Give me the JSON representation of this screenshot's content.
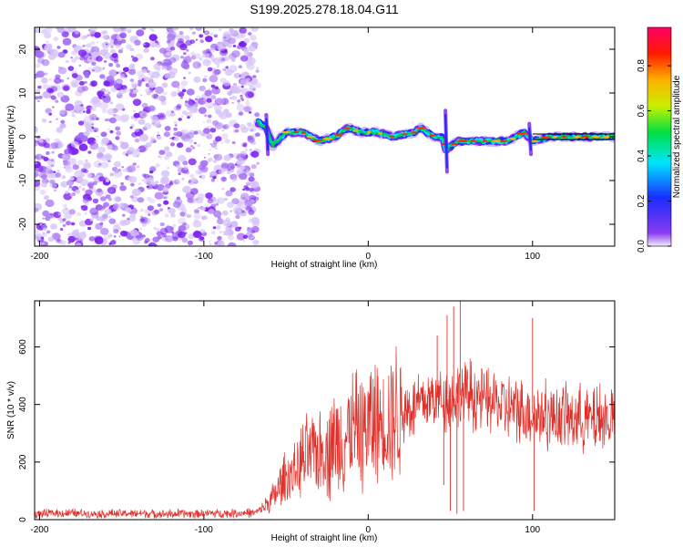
{
  "title": "S199.2025.278.18.04.G11",
  "chart_data": [
    {
      "type": "heatmap",
      "name": "spectrogram",
      "xlabel": "Height of straight line (km)",
      "ylabel": "Frequency (Hz)",
      "xlim": [
        -203,
        150
      ],
      "ylim": [
        -25,
        25
      ],
      "xticks": [
        -200,
        -100,
        0,
        100
      ],
      "yticks": [
        -20,
        -10,
        0,
        10,
        20
      ],
      "noise_region": [
        -203,
        -67
      ],
      "signal_region": [
        -67,
        150
      ],
      "signal_track": [
        {
          "x": -70,
          "f": 4
        },
        {
          "x": -62,
          "f": 2
        },
        {
          "x": -58,
          "f": -2
        },
        {
          "x": -50,
          "f": 1
        },
        {
          "x": -40,
          "f": 1
        },
        {
          "x": -30,
          "f": -1
        },
        {
          "x": -20,
          "f": 0
        },
        {
          "x": -12,
          "f": 2
        },
        {
          "x": -5,
          "f": 1
        },
        {
          "x": 5,
          "f": 1
        },
        {
          "x": 15,
          "f": 0
        },
        {
          "x": 28,
          "f": 1
        },
        {
          "x": 32,
          "f": 2
        },
        {
          "x": 40,
          "f": 0
        },
        {
          "x": 45,
          "f": 0
        },
        {
          "x": 47,
          "f": -3
        },
        {
          "x": 55,
          "f": -1
        },
        {
          "x": 70,
          "f": -1
        },
        {
          "x": 85,
          "f": -1
        },
        {
          "x": 95,
          "f": 1
        },
        {
          "x": 100,
          "f": -1
        },
        {
          "x": 110,
          "f": 0
        },
        {
          "x": 130,
          "f": 0
        },
        {
          "x": 150,
          "f": 0
        }
      ],
      "colorbar": {
        "label": "Normalized spectral amplitude",
        "range": [
          0.0,
          0.97
        ],
        "ticks": [
          "0.0",
          "0.2",
          "0.4",
          "0.6",
          "0.8"
        ],
        "ticks_values": [
          0.0,
          0.2,
          0.4,
          0.6,
          0.8
        ],
        "colors": [
          "#f2eefc",
          "#8a3cf0",
          "#1a2cff",
          "#00e5ff",
          "#00e040",
          "#c8f000",
          "#ffb000",
          "#ff1a00",
          "#ff0066"
        ]
      }
    },
    {
      "type": "line",
      "name": "snr",
      "xlabel": "Height of straight line (km)",
      "ylabel": "SNR (10 * v/v)",
      "xlim": [
        -203,
        150
      ],
      "ylim": [
        0,
        760
      ],
      "xticks": [
        -200,
        -100,
        0,
        100
      ],
      "yticks": [
        0,
        200,
        400,
        600
      ],
      "color": "#e0302a",
      "series": [
        {
          "name": "SNR",
          "points": [
            [
              -203,
              20
            ],
            [
              -190,
              22
            ],
            [
              -180,
              22
            ],
            [
              -160,
              20
            ],
            [
              -140,
              22
            ],
            [
              -120,
              20
            ],
            [
              -100,
              22
            ],
            [
              -80,
              22
            ],
            [
              -68,
              25
            ],
            [
              -60,
              60
            ],
            [
              -55,
              100
            ],
            [
              -50,
              140
            ],
            [
              -40,
              200
            ],
            [
              -30,
              240
            ],
            [
              -20,
              270
            ],
            [
              -10,
              300
            ],
            [
              0,
              330
            ],
            [
              10,
              350
            ],
            [
              20,
              370
            ],
            [
              30,
              400
            ],
            [
              40,
              420
            ],
            [
              45,
              430
            ],
            [
              50,
              420
            ],
            [
              55,
              430
            ],
            [
              60,
              440
            ],
            [
              70,
              420
            ],
            [
              80,
              400
            ],
            [
              90,
              380
            ],
            [
              100,
              370
            ],
            [
              110,
              360
            ],
            [
              120,
              355
            ],
            [
              130,
              350
            ],
            [
              140,
              350
            ],
            [
              150,
              350
            ]
          ]
        },
        {
          "name": "SNR-spikes",
          "points": [
            [
              42,
              640
            ],
            [
              46,
              120
            ],
            [
              48,
              710
            ],
            [
              50,
              30
            ],
            [
              52,
              740
            ],
            [
              54,
              20
            ],
            [
              56,
              760
            ],
            [
              58,
              30
            ],
            [
              100,
              700
            ],
            [
              101,
              30
            ]
          ]
        }
      ]
    }
  ]
}
